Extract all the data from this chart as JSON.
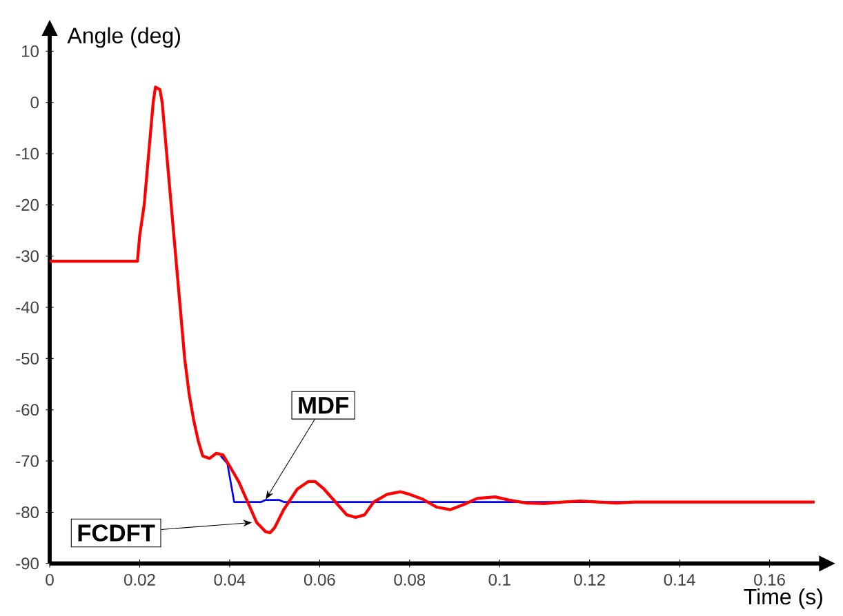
{
  "chart_data": {
    "type": "line",
    "xlabel": "Time (s)",
    "ylabel": "Angle (deg)",
    "xlim": [
      0,
      0.171
    ],
    "ylim": [
      -90,
      13
    ],
    "xticks": [
      0,
      0.02,
      0.04,
      0.06,
      0.08,
      0.1,
      0.12,
      0.14,
      0.16
    ],
    "yticks": [
      -90,
      -80,
      -70,
      -60,
      -50,
      -40,
      -30,
      -20,
      -10,
      0,
      10
    ],
    "grid": false,
    "marker": "none",
    "line_style": "solid",
    "series": [
      {
        "color": "#0000ff",
        "x": [
          0.038,
          0.0395,
          0.041,
          0.047,
          0.048,
          0.051,
          0.052,
          0.17
        ],
        "values": [
          -69,
          -70.5,
          -78,
          -78,
          -77.6,
          -77.6,
          -78,
          -78
        ]
      },
      {
        "color": "#ff0000",
        "x": [
          0,
          0.0195,
          0.02,
          0.021,
          0.022,
          0.023,
          0.0235,
          0.0245,
          0.025,
          0.026,
          0.027,
          0.028,
          0.029,
          0.03,
          0.031,
          0.032,
          0.033,
          0.034,
          0.0355,
          0.037,
          0.0385,
          0.04,
          0.042,
          0.044,
          0.046,
          0.048,
          0.049,
          0.05,
          0.052,
          0.055,
          0.0575,
          0.059,
          0.061,
          0.064,
          0.066,
          0.068,
          0.07,
          0.072,
          0.075,
          0.078,
          0.08,
          0.083,
          0.086,
          0.089,
          0.092,
          0.095,
          0.099,
          0.102,
          0.106,
          0.11,
          0.114,
          0.118,
          0.122,
          0.126,
          0.13,
          0.14,
          0.17
        ],
        "values": [
          -31,
          -31,
          -26,
          -20,
          -10,
          0,
          3,
          2.5,
          0,
          -10,
          -20,
          -30,
          -40,
          -50,
          -57,
          -62,
          -66,
          -69,
          -69.5,
          -68.5,
          -68.8,
          -71,
          -74,
          -78,
          -82,
          -83.8,
          -84,
          -83,
          -79.5,
          -75.5,
          -74,
          -74,
          -75.5,
          -78.5,
          -80.5,
          -81,
          -80.5,
          -78,
          -76.5,
          -76,
          -76.5,
          -77.5,
          -79,
          -79.5,
          -78.5,
          -77.3,
          -77,
          -77.6,
          -78.2,
          -78.3,
          -78,
          -77.8,
          -78,
          -78.2,
          -78,
          -78,
          -78
        ]
      }
    ],
    "annotations": [
      {
        "text": "MDF",
        "x": 0.048,
        "y": -77.5
      },
      {
        "text": "FCDFT",
        "x": 0.045,
        "y": -82
      }
    ]
  }
}
